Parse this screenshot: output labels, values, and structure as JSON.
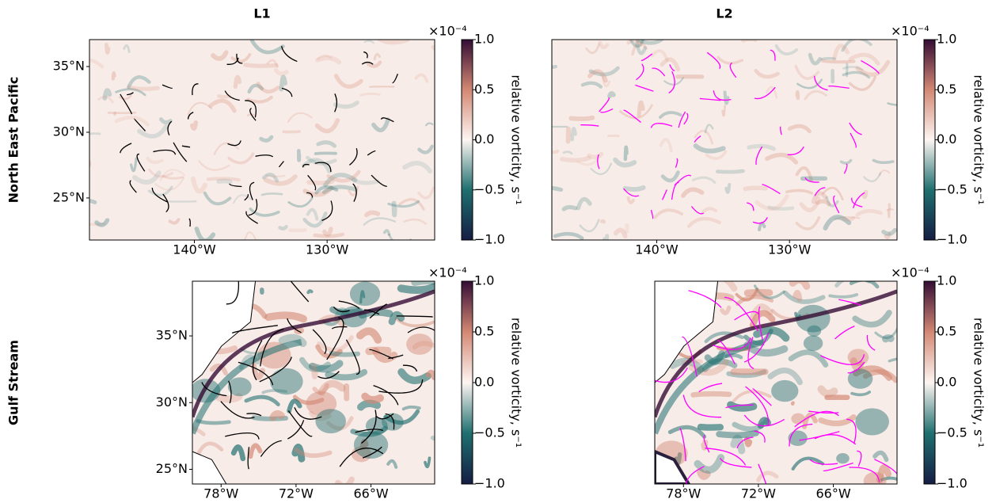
{
  "chart_data": [
    {
      "type": "map",
      "title": "L1",
      "row_label": "North East Pacific",
      "xlim": [
        -147.9,
        -121.9
      ],
      "ylim": [
        21.8,
        37.05
      ],
      "xticks": [
        {
          "value": -140,
          "label": "140°W"
        },
        {
          "value": -130,
          "label": "130°W"
        }
      ],
      "yticks": [
        {
          "value": 25,
          "label": "25°N"
        },
        {
          "value": 30,
          "label": "30°N"
        },
        {
          "value": 35,
          "label": "35°N"
        }
      ],
      "trajectory_color": "#000000",
      "colorbar": {
        "label": "relative vorticity, s⁻¹",
        "multiplier": "×10⁻⁴",
        "lim": [
          -1,
          1
        ],
        "ticks": [
          {
            "value": -1,
            "label": "−1.0"
          },
          {
            "value": -0.5,
            "label": "−0.5"
          },
          {
            "value": 0,
            "label": "0.0"
          },
          0.5,
          {
            "value": 1,
            "label": "1.0"
          }
        ],
        "colors": [
          "#151d44",
          "#1f6f6f",
          "#fdf5f2",
          "#d38873",
          "#340d35"
        ]
      }
    },
    {
      "type": "map",
      "title": "L2",
      "xlim": [
        -147.9,
        -121.9
      ],
      "ylim": [
        21.8,
        37.05
      ],
      "xticks": [
        {
          "value": -140,
          "label": "140°W"
        },
        {
          "value": -130,
          "label": "130°W"
        }
      ],
      "trajectory_color": "#ff00ff",
      "colorbar": {
        "label": "relative vorticity, s⁻¹",
        "multiplier": "×10⁻⁴",
        "lim": [
          -1,
          1
        ],
        "ticks": [
          {
            "value": -1,
            "label": "−1.0"
          },
          {
            "value": -0.5,
            "label": "−0.5"
          },
          {
            "value": 0,
            "label": "0.0"
          },
          0.5,
          {
            "value": 1,
            "label": "1.0"
          }
        ],
        "colors": [
          "#151d44",
          "#1f6f6f",
          "#fdf5f2",
          "#d38873",
          "#340d35"
        ]
      }
    },
    {
      "type": "map",
      "row_label": "Gulf Stream",
      "xlim": [
        -80.3,
        -60.9
      ],
      "ylim": [
        23.9,
        39.1
      ],
      "xticks": [
        {
          "value": -78,
          "label": "78°W"
        },
        {
          "value": -72,
          "label": "72°W"
        },
        {
          "value": -66,
          "label": "66°W"
        }
      ],
      "yticks": [
        {
          "value": 25,
          "label": "25°N"
        },
        {
          "value": 30,
          "label": "30°N"
        },
        {
          "value": 35,
          "label": "35°N"
        }
      ],
      "trajectory_color": "#000000",
      "colorbar": {
        "label": "relative vorticity, s⁻¹",
        "multiplier": "×10⁻⁴",
        "lim": [
          -1,
          1
        ],
        "ticks": [
          {
            "value": -1,
            "label": "−1.0"
          },
          {
            "value": -0.5,
            "label": "−0.5"
          },
          {
            "value": 0,
            "label": "0.0"
          },
          0.5,
          {
            "value": 1,
            "label": "1.0"
          }
        ],
        "colors": [
          "#151d44",
          "#1f6f6f",
          "#fdf5f2",
          "#d38873",
          "#340d35"
        ]
      }
    },
    {
      "type": "map",
      "xlim": [
        -80.3,
        -60.9
      ],
      "ylim": [
        23.9,
        39.1
      ],
      "xticks": [
        {
          "value": -78,
          "label": "78°W"
        },
        {
          "value": -72,
          "label": "72°W"
        },
        {
          "value": -66,
          "label": "66°W"
        }
      ],
      "trajectory_color": "#ff00ff",
      "colorbar": {
        "label": "relative vorticity, s⁻¹",
        "multiplier": "×10⁻⁴",
        "lim": [
          -1,
          1
        ],
        "ticks": [
          {
            "value": -1,
            "label": "−1.0"
          },
          {
            "value": -0.5,
            "label": "−0.5"
          },
          {
            "value": 0,
            "label": "0.0"
          },
          0.5,
          {
            "value": 1,
            "label": "1.0"
          }
        ],
        "colors": [
          "#151d44",
          "#1f6f6f",
          "#fdf5f2",
          "#d38873",
          "#340d35"
        ]
      }
    }
  ]
}
